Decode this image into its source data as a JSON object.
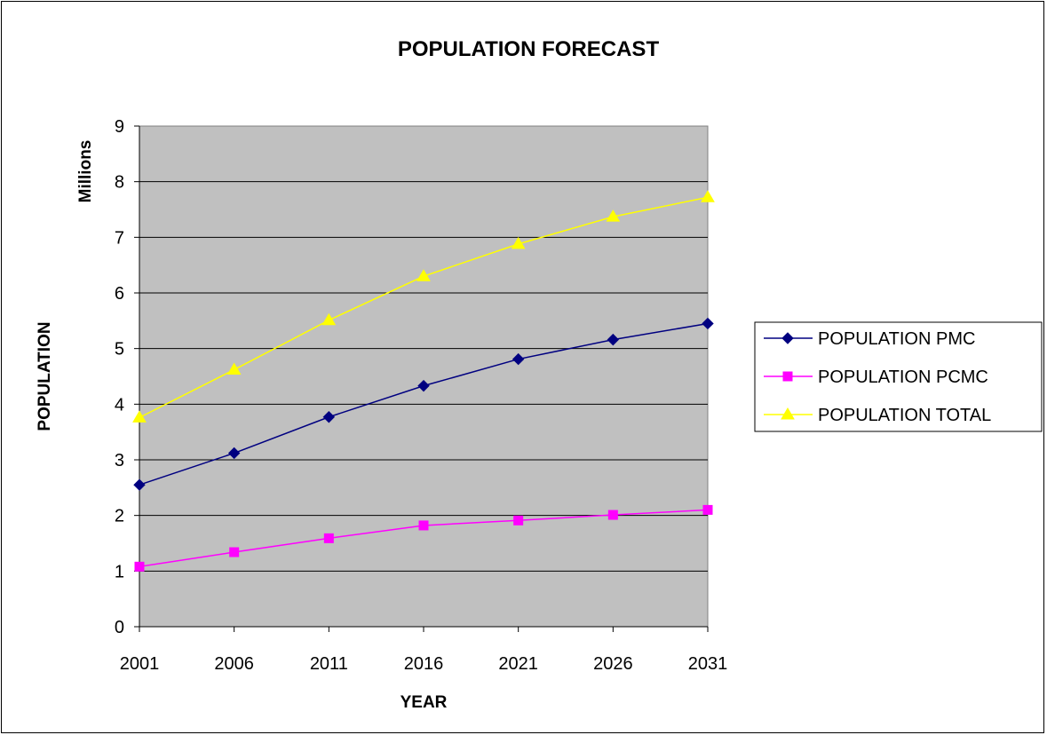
{
  "chart_data": {
    "type": "line",
    "title": "POPULATION FORECAST",
    "xlabel": "YEAR",
    "ylabel": "POPULATION",
    "units_label": "Millions",
    "categories": [
      "2001",
      "2006",
      "2011",
      "2016",
      "2021",
      "2026",
      "2031"
    ],
    "ylim": [
      0,
      9
    ],
    "yticks": [
      "0",
      "1",
      "2",
      "3",
      "4",
      "5",
      "6",
      "7",
      "8",
      "9"
    ],
    "grid": true,
    "plot_background": "#c0c0c0",
    "legend_position": "right",
    "series": [
      {
        "name": "POPULATION PMC",
        "marker": "diamond",
        "color": "#000080",
        "values": [
          2.55,
          3.12,
          3.77,
          4.33,
          4.81,
          5.16,
          5.45
        ]
      },
      {
        "name": "POPULATION PCMC",
        "marker": "square",
        "color": "#ff00ff",
        "values": [
          1.08,
          1.34,
          1.59,
          1.82,
          1.91,
          2.01,
          2.1
        ]
      },
      {
        "name": "POPULATION TOTAL",
        "marker": "triangle",
        "color": "#ffff00",
        "values": [
          3.76,
          4.62,
          5.51,
          6.3,
          6.88,
          7.37,
          7.72
        ]
      }
    ]
  }
}
